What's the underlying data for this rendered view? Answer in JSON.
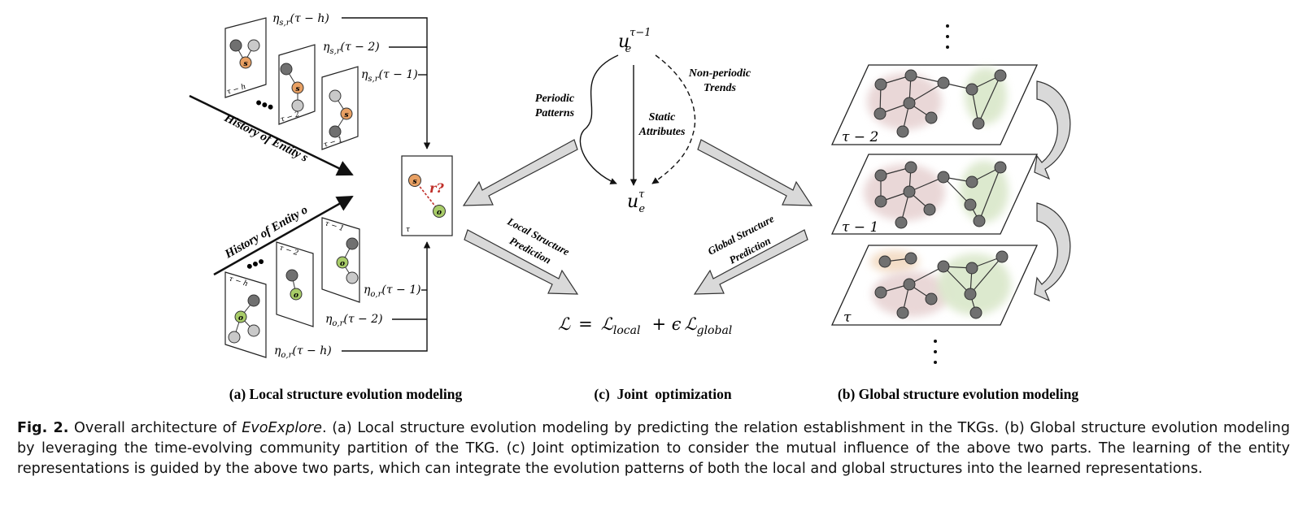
{
  "panel_a": {
    "top_labels": [
      "η<tspan font-size='11' dy='3'>s,r</tspan>",
      "(τ − h)",
      "(τ − 2)",
      "(τ − 1)"
    ],
    "eta_s": "η",
    "sub_s": "s,r",
    "sub_o": "o,r",
    "t_h": "(τ − h)",
    "t_2": "(τ − 2)",
    "t_1": "(τ − 1)",
    "history_s": "History of Entity s",
    "history_o": "History of Entity o",
    "frame_h": "τ − h",
    "frame_2": "τ − 2",
    "frame_1": "τ − 1",
    "frame_tau": "τ",
    "node_s": "s",
    "node_o": "o",
    "query": "r?",
    "caption": "(a) Local structure evolution modeling"
  },
  "panel_c": {
    "u_top": "u",
    "u_top_sub": "e",
    "u_top_sup": "τ−1",
    "u_bottom": "u",
    "u_bottom_sub": "e",
    "u_bottom_sup": "τ",
    "periodic_1": "Periodic",
    "periodic_2": "Patterns",
    "static_1": "Static",
    "static_2": "Attributes",
    "nonperiodic_1": "Non-periodic",
    "nonperiodic_2": "Trends",
    "local_pred_1": "Local Structure",
    "local_pred_2": "Prediction",
    "global_pred_1": "Global Structure",
    "global_pred_2": "Prediction",
    "loss_L": "ℒ",
    "loss_eq": "=",
    "loss_local_sub": "local",
    "loss_plus": "+ ϵ",
    "loss_global_sub": "global",
    "caption": "(c)  Joint  optimization"
  },
  "panel_b": {
    "plane_top": "τ − 2",
    "plane_mid": "τ − 1",
    "plane_bot": "τ",
    "caption": "(b) Global structure evolution modeling"
  },
  "figure_caption": {
    "label": "Fig. 2.",
    "text_1": " Overall architecture of ",
    "name": "EvoExplore",
    "text_2": ". (a) Local structure evolution modeling by predicting the relation establishment in the TKGs. (b) Global structure evolution modeling by leveraging the time-evolving community partition of the TKG. (c) Joint optimization to consider the mutual influence of the above two parts. The learning of the entity representations is guided by the above two parts, which can integrate the evolution patterns of both the local and global structures into the learned representations."
  },
  "colors": {
    "entity_s": "#e8a063",
    "entity_o": "#a8cc68",
    "node_dark": "#707070",
    "node_light": "#c9c9c9",
    "community_red": "#e7d3d3",
    "community_green": "#dbe8cc",
    "community_orange": "#f3dcc4",
    "query_red": "#c0302a",
    "arrow_fill": "#d9d9d9"
  }
}
